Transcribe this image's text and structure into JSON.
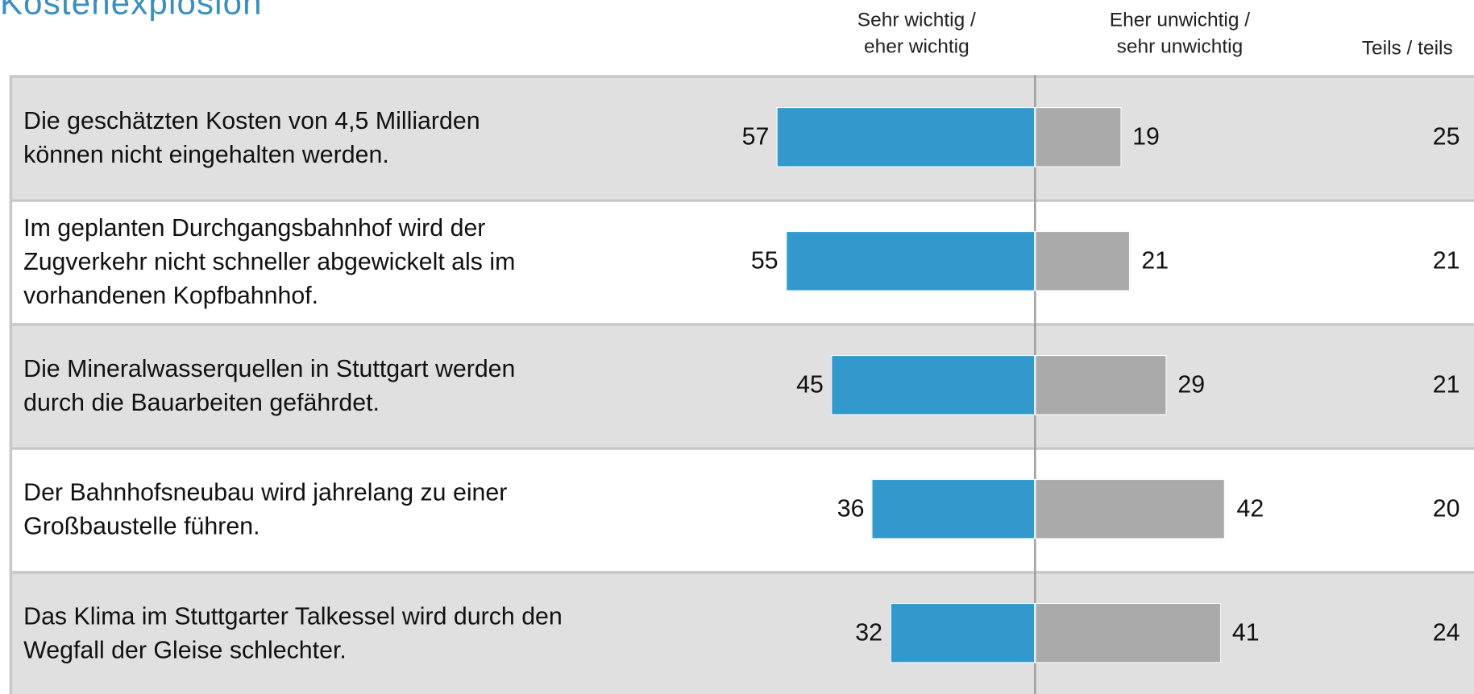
{
  "chart_data": {
    "type": "bar",
    "title": "Kostenexplosion",
    "categories": [
      "Die geschätzten Kosten von 4,5 Milliarden\nkönnen nicht eingehalten werden.",
      "Im geplanten Durchgangsbahnhof wird der\nZugverkehr nicht schneller abgewickelt als im\nvorhandenen Kopfbahnhof.",
      "Die Mineralwasserquellen in Stuttgart werden\ndurch die Bauarbeiten gefährdet.",
      "Der Bahnhofsneubau wird jahrelang zu einer\nGroßbaustelle führen.",
      "Das Klima im Stuttgarter Talkessel wird durch den\nWegfall der Gleise schlechter."
    ],
    "series": [
      {
        "name": "Sehr wichtig  /\neher wichtig",
        "color": "#3399cc",
        "values": [
          57,
          55,
          45,
          36,
          32
        ]
      },
      {
        "name": "Eher unwichtig /\nsehr unwichtig",
        "color": "#aaaaaa",
        "values": [
          19,
          21,
          29,
          42,
          41
        ]
      },
      {
        "name": "Teils / teils",
        "values": [
          25,
          21,
          21,
          20,
          24
        ]
      }
    ]
  }
}
